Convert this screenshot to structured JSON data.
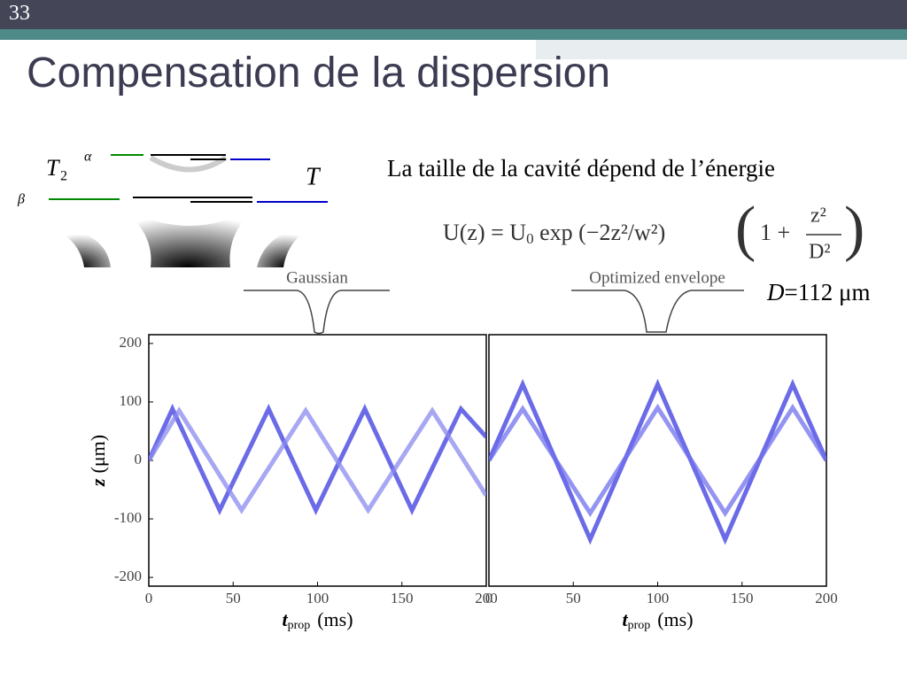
{
  "slide": {
    "number": "33",
    "title": "Compensation de la dispersion",
    "diagram": {
      "T2_main": "T",
      "T2_sub": "2",
      "alpha": "α",
      "beta": "β",
      "T": "T"
    },
    "statement": "La taille de la cavité dépend de l’énergie",
    "formula": {
      "lhs": "U(z) = U",
      "lhs_sub": "0",
      "exp": " exp (−2z²/w²)",
      "one_plus": "1 +",
      "num": "z²",
      "den": "D²"
    },
    "D_symbol": "D",
    "D_value": "=112 μm",
    "inset_left": "Gaussian",
    "inset_right": "Optimized envelope"
  },
  "chart_data": [
    {
      "type": "line",
      "xlim": [
        0,
        200
      ],
      "ylim": [
        -215,
        215
      ],
      "xticks": [
        0,
        50,
        100,
        150,
        200
      ],
      "yticks": [
        200,
        100,
        0,
        -100,
        -200
      ],
      "xlabel": {
        "main": "t",
        "sub": "prop",
        "unit": "(ms)"
      },
      "ylabel": {
        "main": "z",
        "unit": "(μm)"
      },
      "series": [
        {
          "color": "#3a3ae0",
          "x": [
            0,
            14,
            42,
            71,
            99,
            128,
            156,
            185,
            200
          ],
          "values": [
            0,
            88,
            -85,
            88,
            -85,
            88,
            -85,
            88,
            40
          ]
        },
        {
          "color": "#8a8af0",
          "x": [
            0,
            18,
            55,
            93,
            130,
            168,
            200
          ],
          "values": [
            0,
            85,
            -85,
            85,
            -85,
            85,
            -60
          ]
        }
      ]
    },
    {
      "type": "line",
      "xlim": [
        0,
        200
      ],
      "ylim": [
        -215,
        215
      ],
      "xticks": [
        0,
        50,
        100,
        150,
        200
      ],
      "xlabel": {
        "main": "t",
        "sub": "prop",
        "unit": "(ms)"
      },
      "series": [
        {
          "color": "#3a3ae0",
          "x": [
            0,
            20,
            60,
            100,
            140,
            180,
            200
          ],
          "values": [
            0,
            130,
            -135,
            130,
            -135,
            130,
            0
          ]
        },
        {
          "color": "#7070ee",
          "x": [
            0,
            20,
            60,
            100,
            140,
            180,
            200
          ],
          "values": [
            0,
            88,
            -90,
            90,
            -90,
            90,
            0
          ]
        }
      ]
    }
  ]
}
